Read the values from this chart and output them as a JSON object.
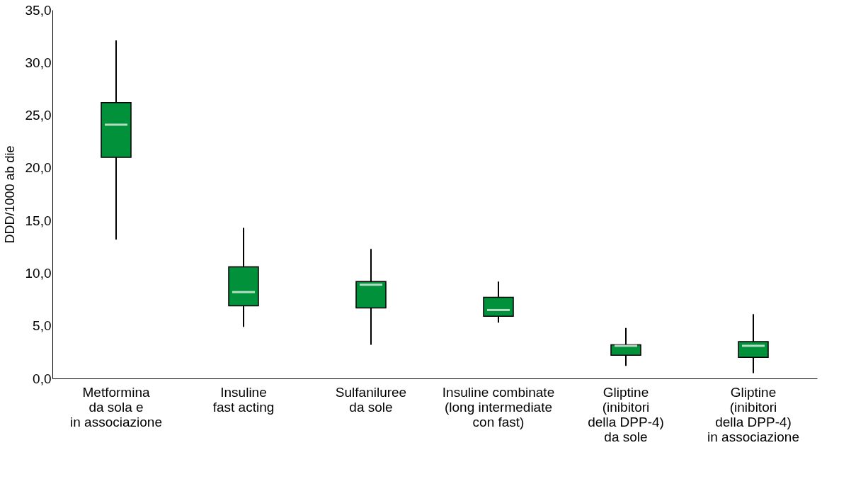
{
  "chart_data": {
    "type": "box",
    "ylabel": "DDD/1000 ab die",
    "categories": [
      "Metformina\nda sola e\nin associazione",
      "Insuline\nfast acting",
      "Sulfaniluree\nda sole",
      "Insuline combinate\n(long intermediate\ncon fast)",
      "Gliptine\n(inibitori\ndella DPP-4)\nda sole",
      "Gliptine\n(inibitori\ndella DPP-4)\nin associazione"
    ],
    "series": [
      {
        "color": "#00913a",
        "boxes": [
          {
            "low": 13.2,
            "q1": 21.0,
            "median": 24.1,
            "q3": 26.2,
            "high": 32.1
          },
          {
            "low": 4.9,
            "q1": 6.9,
            "median": 8.2,
            "q3": 10.6,
            "high": 14.3
          },
          {
            "low": 3.2,
            "q1": 6.7,
            "median": 8.9,
            "q3": 9.2,
            "high": 12.3
          },
          {
            "low": 5.3,
            "q1": 5.9,
            "median": 6.5,
            "q3": 7.7,
            "high": 9.2
          },
          {
            "low": 1.2,
            "q1": 2.2,
            "median": 3.1,
            "q3": 3.2,
            "high": 4.8
          },
          {
            "low": 0.5,
            "q1": 2.0,
            "median": 3.1,
            "q3": 3.5,
            "high": 6.1
          }
        ]
      }
    ],
    "ylim": [
      0,
      35
    ],
    "yticks": [
      {
        "value": 0,
        "label": "0,0"
      },
      {
        "value": 5,
        "label": "5,0"
      },
      {
        "value": 10,
        "label": "10,0"
      },
      {
        "value": 15,
        "label": "15,0"
      },
      {
        "value": 20,
        "label": "20,0"
      },
      {
        "value": 25,
        "label": "25,0"
      },
      {
        "value": 30,
        "label": "30,0"
      },
      {
        "value": 35,
        "label": "35,0"
      }
    ],
    "grid": false
  }
}
